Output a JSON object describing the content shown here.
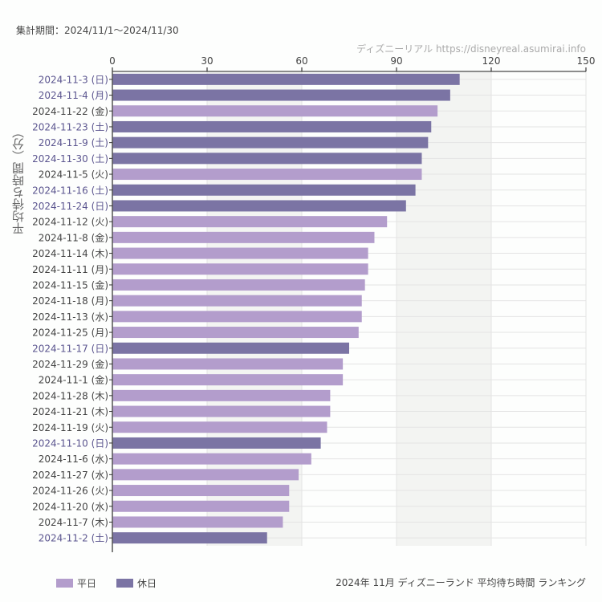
{
  "period_text": "集計期間：2024/11/1〜2024/11/30",
  "credit_text": "ディズニーリアル https://disneyreal.asumirai.info",
  "footer_title": "2024年 11月 ディズニーランド 平均待ち時間 ランキング",
  "colors": {
    "weekday": "#b39dcc",
    "holiday": "#7b74a4",
    "holiday_label": "#5b558f",
    "weekday_label": "#444444",
    "band": "#f3f4f2"
  },
  "chart_data": {
    "type": "bar",
    "orientation": "horizontal",
    "title": "2024年 11月 ディズニーランド 平均待ち時間 ランキング",
    "xlabel": "",
    "ylabel": "平均待ち時間（分）",
    "xlim": [
      0,
      150
    ],
    "x_ticks": [
      "0",
      "30",
      "60",
      "90",
      "120",
      "150"
    ],
    "grid": true,
    "legend_position": "bottom-left",
    "legend": [
      {
        "name": "平日",
        "key": "weekday"
      },
      {
        "name": "休日",
        "key": "holiday"
      }
    ],
    "categories": [
      "2024-11-3 (日)",
      "2024-11-4 (月)",
      "2024-11-22 (金)",
      "2024-11-23 (土)",
      "2024-11-9 (土)",
      "2024-11-30 (土)",
      "2024-11-5 (火)",
      "2024-11-16 (土)",
      "2024-11-24 (日)",
      "2024-11-12 (火)",
      "2024-11-8 (金)",
      "2024-11-14 (木)",
      "2024-11-11 (月)",
      "2024-11-15 (金)",
      "2024-11-18 (月)",
      "2024-11-13 (水)",
      "2024-11-25 (月)",
      "2024-11-17 (日)",
      "2024-11-29 (金)",
      "2024-11-1 (金)",
      "2024-11-28 (木)",
      "2024-11-21 (木)",
      "2024-11-19 (火)",
      "2024-11-10 (日)",
      "2024-11-6 (水)",
      "2024-11-27 (水)",
      "2024-11-26 (火)",
      "2024-11-20 (水)",
      "2024-11-7 (木)",
      "2024-11-2 (土)"
    ],
    "values": [
      110,
      107,
      103,
      101,
      100,
      98,
      98,
      96,
      93,
      87,
      83,
      81,
      81,
      80,
      79,
      79,
      78,
      75,
      73,
      73,
      69,
      69,
      68,
      66,
      63,
      59,
      56,
      56,
      54,
      49
    ],
    "day_type": [
      "holiday",
      "holiday",
      "weekday",
      "holiday",
      "holiday",
      "holiday",
      "weekday",
      "holiday",
      "holiday",
      "weekday",
      "weekday",
      "weekday",
      "weekday",
      "weekday",
      "weekday",
      "weekday",
      "weekday",
      "holiday",
      "weekday",
      "weekday",
      "weekday",
      "weekday",
      "weekday",
      "holiday",
      "weekday",
      "weekday",
      "weekday",
      "weekday",
      "weekday",
      "holiday"
    ]
  }
}
